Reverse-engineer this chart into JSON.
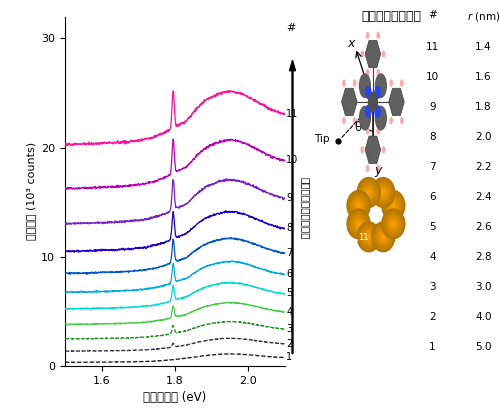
{
  "title_right": "測定時の探針位置",
  "xlabel": "エネルギー (eV)",
  "ylabel": "発光強度 (10³ counts)",
  "xlim": [
    1.5,
    2.1
  ],
  "ylim": [
    0,
    32
  ],
  "yticks": [
    0,
    10,
    20,
    30
  ],
  "arrow_label": "探針を分子に近づける",
  "table_data": [
    [
      11,
      1.4
    ],
    [
      10,
      1.6
    ],
    [
      9,
      1.8
    ],
    [
      8,
      2.0
    ],
    [
      7,
      2.2
    ],
    [
      6,
      2.4
    ],
    [
      5,
      2.6
    ],
    [
      4,
      2.8
    ],
    [
      3,
      3.0
    ],
    [
      2,
      4.0
    ],
    [
      1,
      5.0
    ]
  ],
  "curve_numbers": [
    1,
    2,
    3,
    4,
    5,
    6,
    7,
    8,
    9,
    10,
    11
  ],
  "curve_colors": [
    "#1a1a1a",
    "#333333",
    "#228822",
    "#44cc44",
    "#00ddcc",
    "#00aadd",
    "#0055cc",
    "#2200cc",
    "#7722cc",
    "#bb00bb",
    "#ff1199"
  ],
  "curve_offsets": [
    0.3,
    1.3,
    2.4,
    3.7,
    5.1,
    6.6,
    8.3,
    10.3,
    12.8,
    16.0,
    20.0
  ],
  "broad_peak_energy": 1.94,
  "broad_peak_sigma": 0.09,
  "sharp_peak_energy": 1.795,
  "sharp_peak_sigma": 0.003
}
